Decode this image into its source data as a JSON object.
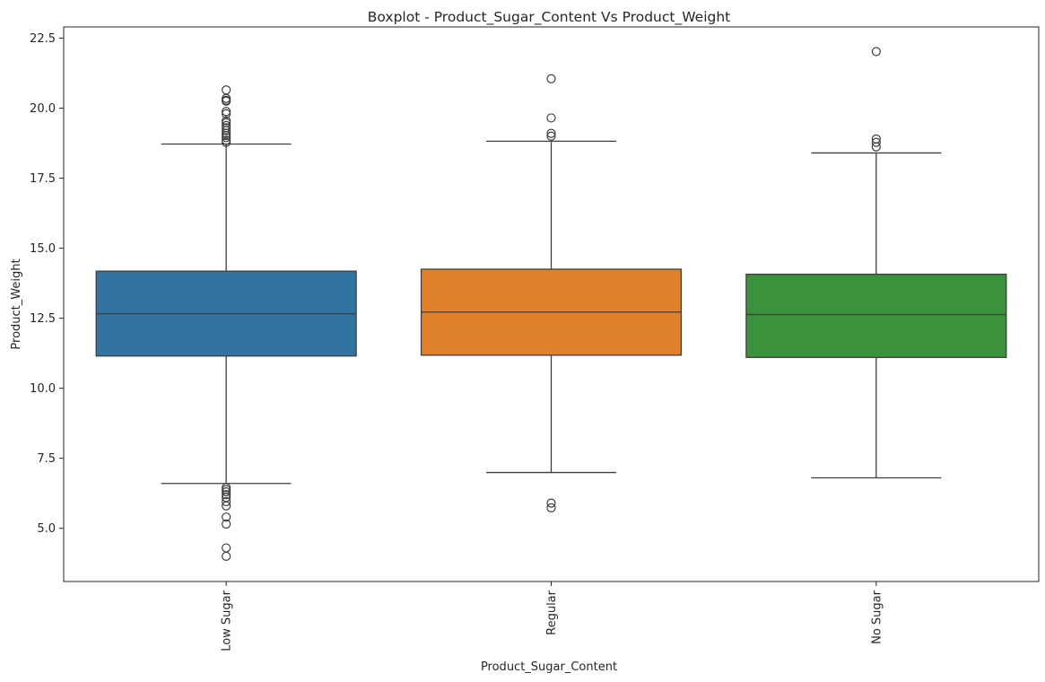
{
  "chart_data": {
    "type": "box",
    "title": "Boxplot - Product_Sugar_Content Vs Product_Weight",
    "xlabel": "Product_Sugar_Content",
    "ylabel": "Product_Weight",
    "ylim": [
      3.1,
      22.9
    ],
    "yticks": [
      "5.0",
      "7.5",
      "10.0",
      "12.5",
      "15.0",
      "17.5",
      "20.0",
      "22.5"
    ],
    "grid": false,
    "categories": [
      "Low Sugar",
      "Regular",
      "No Sugar"
    ],
    "colors": [
      "#3274a1",
      "#e1812c",
      "#3a923a"
    ],
    "boxes": [
      {
        "category": "Low Sugar",
        "whisker_low": 6.6,
        "q1": 11.15,
        "median": 12.66,
        "q3": 14.18,
        "whisker_high": 18.72,
        "outliers": [
          20.65,
          20.35,
          20.28,
          20.25,
          19.88,
          19.8,
          19.55,
          19.48,
          19.38,
          19.3,
          19.2,
          19.1,
          19.02,
          18.95,
          18.85,
          18.78,
          6.45,
          6.38,
          6.3,
          6.2,
          6.1,
          5.95,
          5.8,
          5.4,
          5.15,
          4.3,
          4.0
        ]
      },
      {
        "category": "Regular",
        "whisker_low": 6.99,
        "q1": 11.18,
        "median": 12.72,
        "q3": 14.25,
        "whisker_high": 18.82,
        "outliers": [
          21.05,
          19.65,
          19.1,
          19.0,
          5.9,
          5.73
        ]
      },
      {
        "category": "No Sugar",
        "whisker_low": 6.8,
        "q1": 11.1,
        "median": 12.63,
        "q3": 14.07,
        "whisker_high": 18.4,
        "outliers": [
          22.02,
          18.9,
          18.78,
          18.62
        ]
      }
    ]
  }
}
